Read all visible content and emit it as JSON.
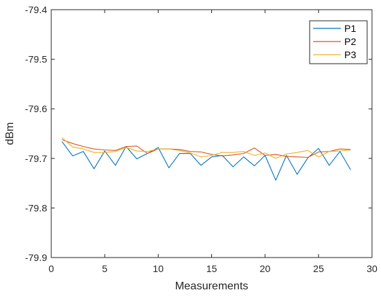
{
  "chart_data": {
    "type": "line",
    "title": "",
    "xlabel": "Measurements",
    "ylabel": "dBm",
    "xlim": [
      0,
      30
    ],
    "ylim": [
      -79.9,
      -79.4
    ],
    "xticks": [
      0,
      5,
      10,
      15,
      20,
      25,
      30
    ],
    "xtick_labels": [
      "0",
      "5",
      "10",
      "15",
      "20",
      "25",
      "30"
    ],
    "yticks": [
      -79.9,
      -79.8,
      -79.7,
      -79.6,
      -79.5,
      -79.4
    ],
    "ytick_labels": [
      "-79.9",
      "-79.8",
      "-79.7",
      "-79.6",
      "-79.5",
      "-79.4"
    ],
    "grid": false,
    "legend_position": "top-right",
    "x": [
      1,
      2,
      3,
      4,
      5,
      6,
      7,
      8,
      9,
      10,
      11,
      12,
      13,
      14,
      15,
      16,
      17,
      18,
      19,
      20,
      21,
      22,
      23,
      24,
      25,
      26,
      27,
      28
    ],
    "series": [
      {
        "name": "P1",
        "color": "#0072BD",
        "values": [
          -79.666,
          -79.695,
          -79.686,
          -79.721,
          -79.685,
          -79.714,
          -79.676,
          -79.701,
          -79.69,
          -79.678,
          -79.719,
          -79.69,
          -79.69,
          -79.714,
          -79.697,
          -79.694,
          -79.717,
          -79.697,
          -79.715,
          -79.694,
          -79.744,
          -79.694,
          -79.732,
          -79.699,
          -79.68,
          -79.714,
          -79.686,
          -79.723
        ]
      },
      {
        "name": "P2",
        "color": "#D95319",
        "values": [
          -79.662,
          -79.67,
          -79.676,
          -79.681,
          -79.683,
          -79.684,
          -79.676,
          -79.675,
          -79.69,
          -79.681,
          -79.681,
          -79.682,
          -79.686,
          -79.687,
          -79.692,
          -79.695,
          -79.693,
          -79.69,
          -79.679,
          -79.694,
          -79.692,
          -79.696,
          -79.697,
          -79.698,
          -79.687,
          -79.686,
          -79.681,
          -79.682
        ]
      },
      {
        "name": "P3",
        "color": "#EDB120",
        "values": [
          -79.658,
          -79.677,
          -79.681,
          -79.688,
          -79.688,
          -79.686,
          -79.678,
          -79.685,
          -79.686,
          -79.681,
          -79.681,
          -79.684,
          -79.689,
          -79.697,
          -79.694,
          -79.688,
          -79.688,
          -79.686,
          -79.694,
          -79.689,
          -79.7,
          -79.691,
          -79.688,
          -79.684,
          -79.697,
          -79.686,
          -79.685,
          -79.683
        ]
      }
    ]
  }
}
